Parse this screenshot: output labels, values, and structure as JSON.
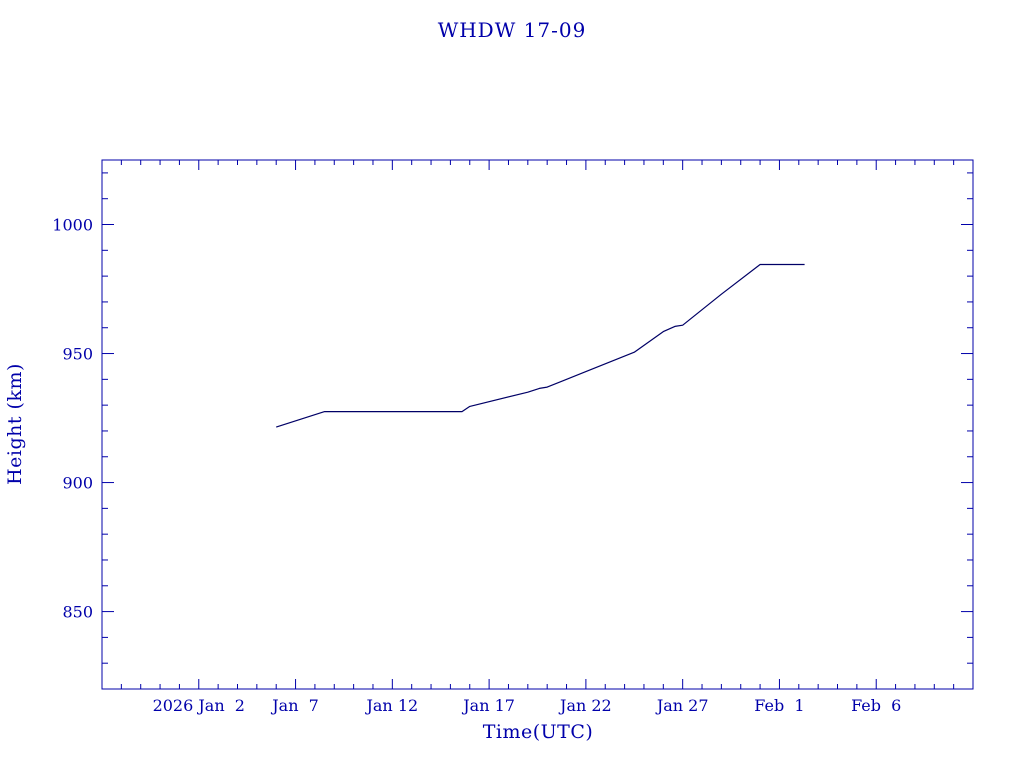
{
  "chart_data": {
    "type": "line",
    "title": "WHDW 17-09",
    "xlabel": "Time(UTC)",
    "ylabel": "Height (km)",
    "x_tick_labels": [
      "2026 Jan  2",
      "Jan  7",
      "Jan 12",
      "Jan 17",
      "Jan 22",
      "Jan 27",
      "Feb  1",
      "Feb  6"
    ],
    "y_tick_labels": [
      "850",
      "900",
      "950",
      "1000"
    ],
    "ylim": [
      820,
      1025
    ],
    "xlim": [
      "2025-12-28",
      "2026-02-11"
    ],
    "grid": false,
    "series": [
      {
        "color": "#000066",
        "x": [
          "2026-01-06",
          "2026-01-08.5",
          "2026-01-15.6",
          "2026-01-16",
          "2026-01-19",
          "2026-01-19.6",
          "2026-01-20",
          "2026-01-22",
          "2026-01-24.5",
          "2026-01-26",
          "2026-01-26.6",
          "2026-01-27",
          "2026-01-29",
          "2026-01-31",
          "2026-01-31.4",
          "2026-02-02.3"
        ],
        "y": [
          921.5,
          927.5,
          927.5,
          929.5,
          935,
          936.5,
          937,
          943,
          950.5,
          958.5,
          960.5,
          961,
          973,
          984.5,
          984.5,
          984.5
        ]
      }
    ]
  },
  "colors": {
    "text": "#0000aa",
    "axes": "#0000aa",
    "line": "#000066",
    "background": "#ffffff"
  }
}
